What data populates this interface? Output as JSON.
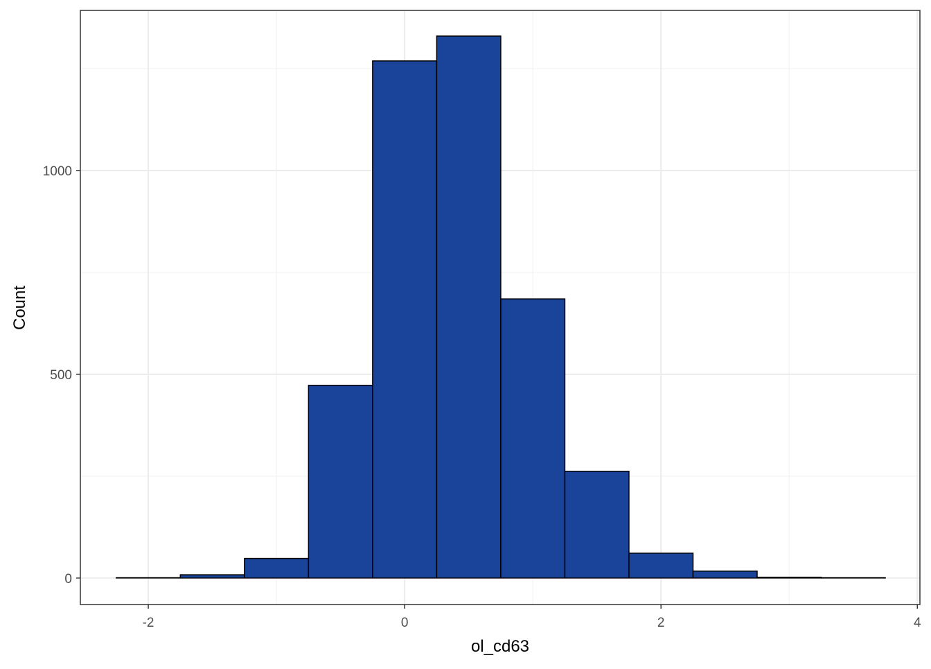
{
  "chart_data": {
    "type": "histogram",
    "x_label": "ol_cd63",
    "y_label": "Count",
    "bins": [
      -2.25,
      -1.75,
      -1.25,
      -0.75,
      -0.25,
      0.25,
      0.75,
      1.25,
      1.75,
      2.25,
      2.75,
      3.25,
      3.75
    ],
    "values": [
      1,
      8,
      48,
      473,
      1269,
      1330,
      685,
      262,
      61,
      17,
      2,
      1
    ],
    "color": "#1a449a",
    "xlim": [
      -2.53,
      4.02
    ],
    "xticks": [
      -2,
      0,
      2,
      4
    ],
    "ylim": [
      -65,
      1393
    ],
    "yticks": [
      0,
      500,
      1000
    ],
    "grid": true
  }
}
